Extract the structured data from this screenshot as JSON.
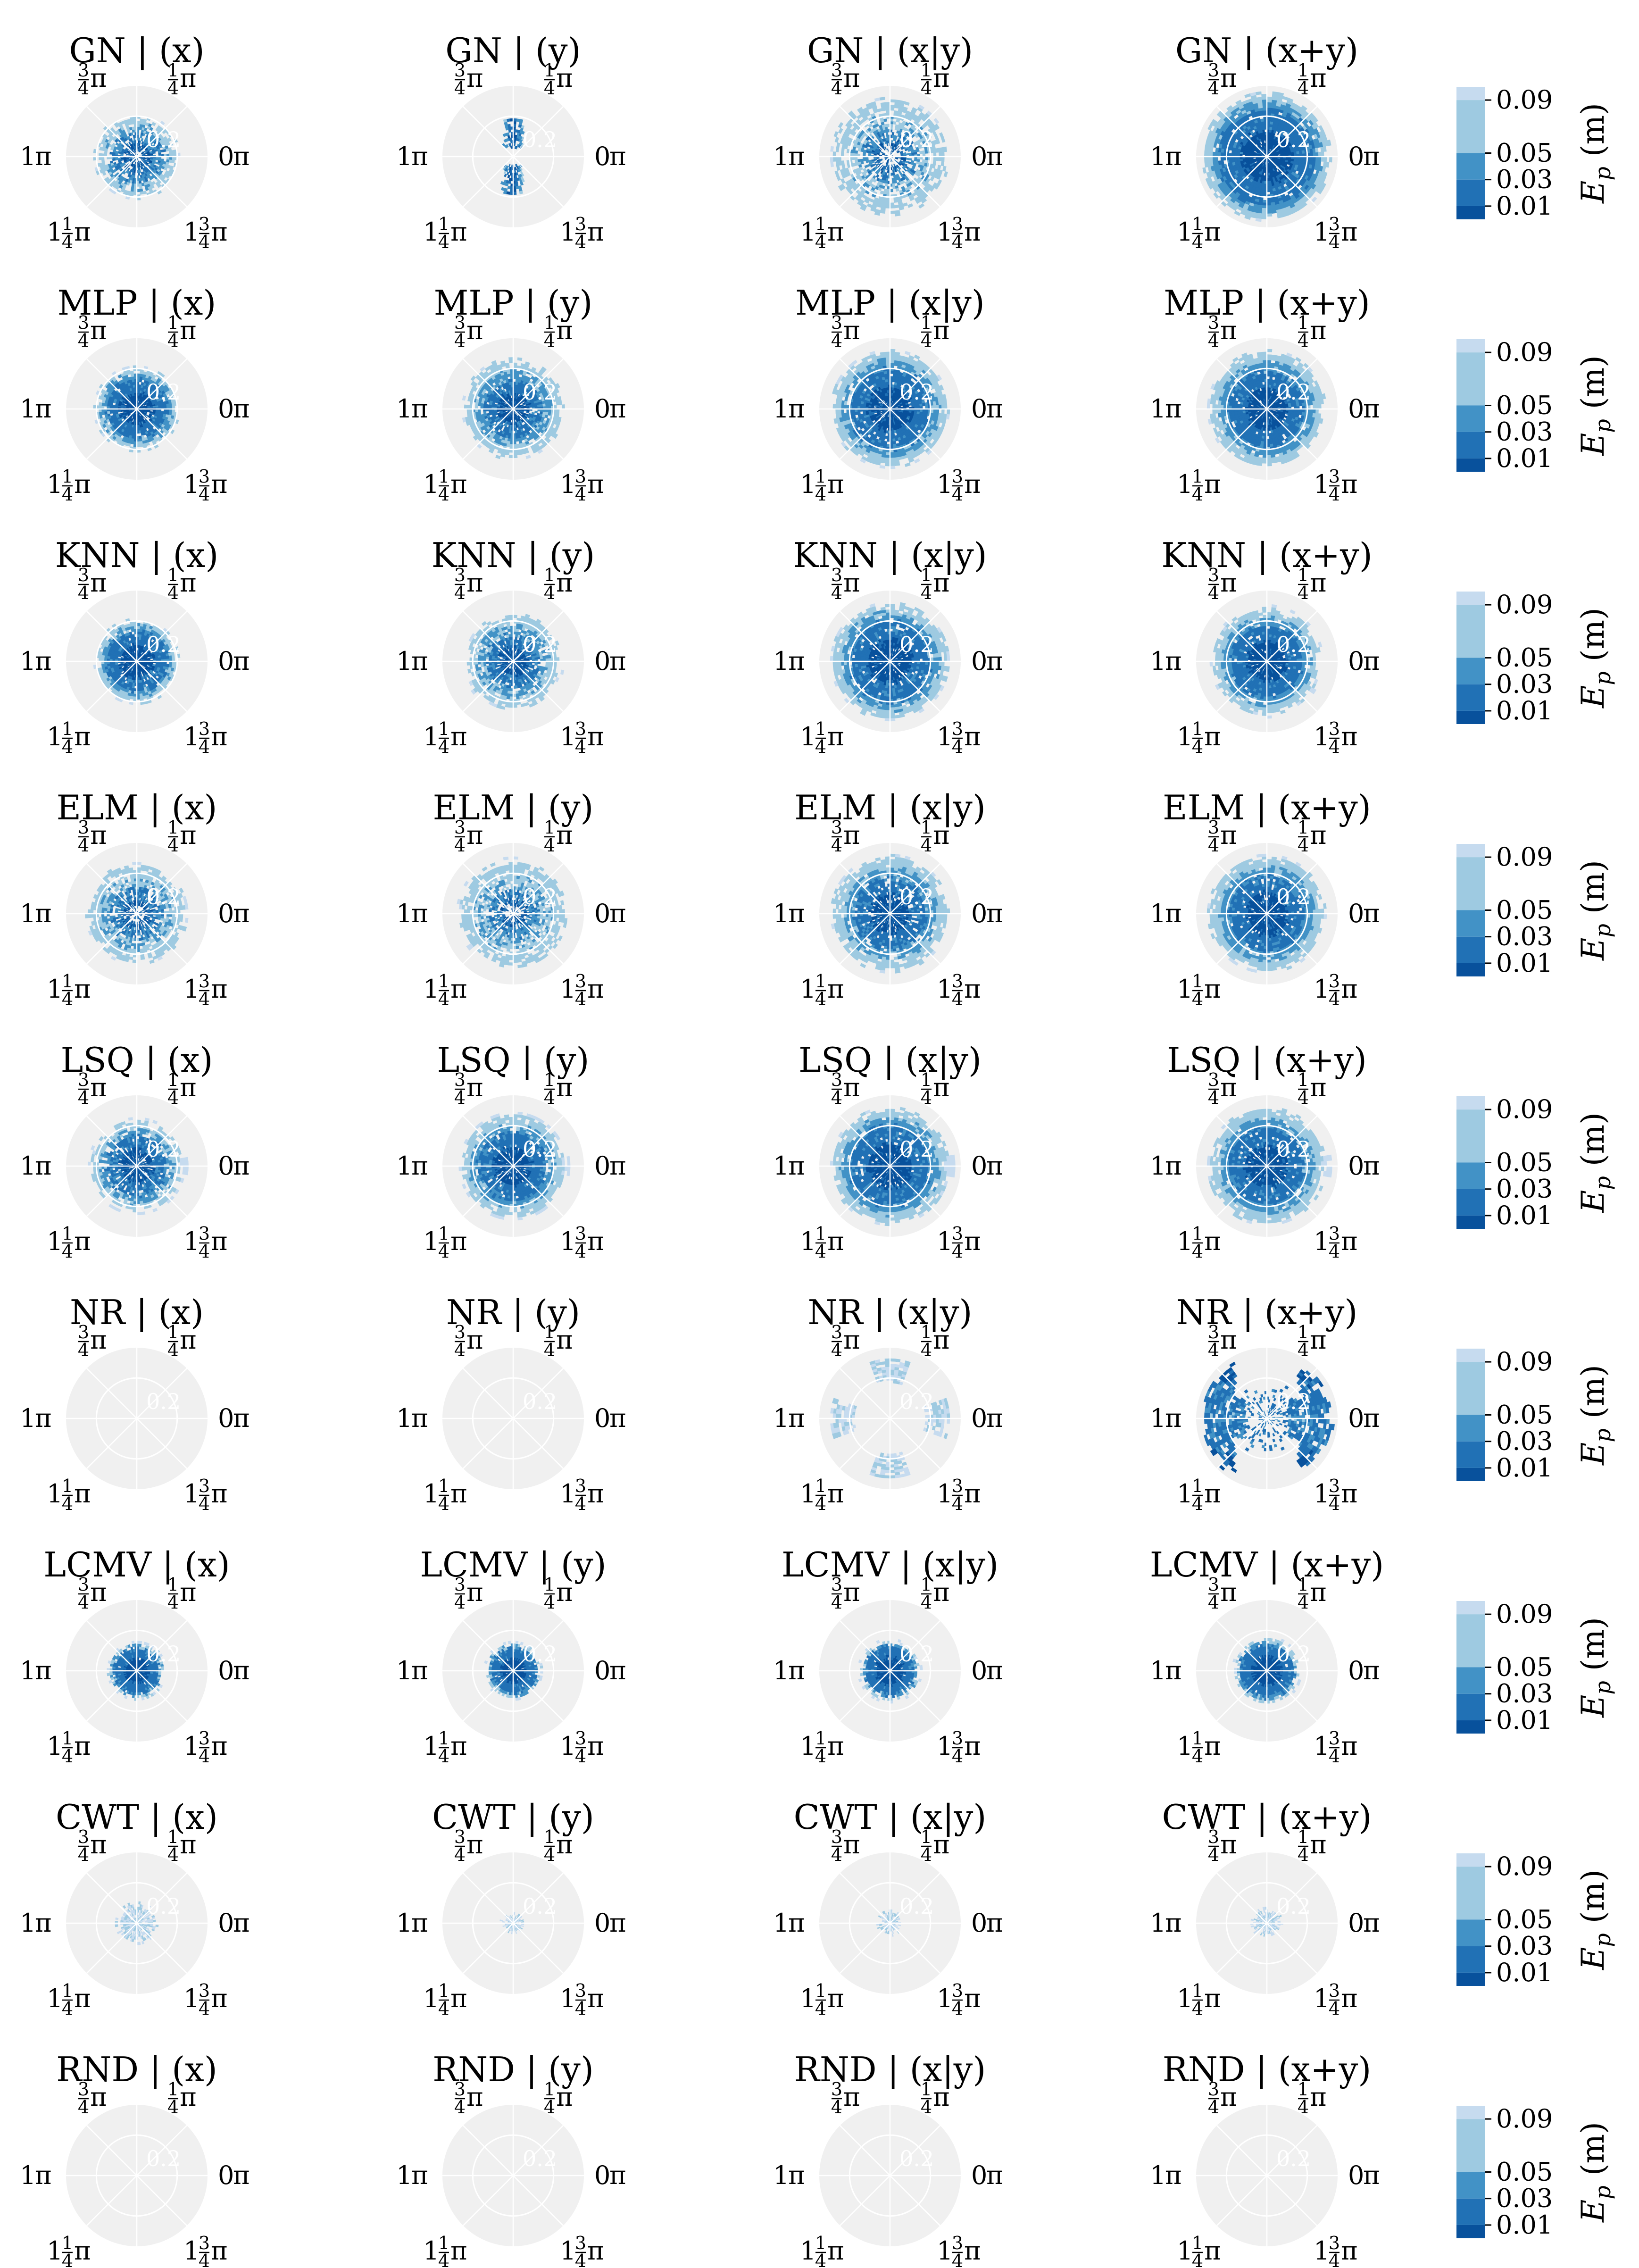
{
  "chart_data": {
    "type": "heatmap",
    "projection": "polar",
    "row_methods": [
      "GN",
      "MLP",
      "KNN",
      "ELM",
      "LSQ",
      "NR",
      "LCMV",
      "CWT",
      "RND"
    ],
    "column_inputs": [
      "(x)",
      "(y)",
      "(x|y)",
      "(x+y)"
    ],
    "panel_titles": [
      [
        "GN | (x)",
        "GN | (y)",
        "GN | (x|y)",
        "GN | (x+y)"
      ],
      [
        "MLP | (x)",
        "MLP | (y)",
        "MLP | (x|y)",
        "MLP | (x+y)"
      ],
      [
        "KNN | (x)",
        "KNN | (y)",
        "KNN | (x|y)",
        "KNN | (x+y)"
      ],
      [
        "ELM | (x)",
        "ELM | (y)",
        "ELM | (x|y)",
        "ELM | (x+y)"
      ],
      [
        "LSQ | (x)",
        "LSQ | (y)",
        "LSQ | (x|y)",
        "LSQ | (x+y)"
      ],
      [
        "NR | (x)",
        "NR | (y)",
        "NR | (x|y)",
        "NR | (x+y)"
      ],
      [
        "LCMV | (x)",
        "LCMV | (y)",
        "LCMV | (x|y)",
        "LCMV | (x+y)"
      ],
      [
        "CWT | (x)",
        "CWT | (y)",
        "CWT | (x|y)",
        "CWT | (x+y)"
      ],
      [
        "RND | (x)",
        "RND | (y)",
        "RND | (x|y)",
        "RND | (x+y)"
      ]
    ],
    "angle_ticks": [
      {
        "whole": "",
        "num": "3",
        "den": "4",
        "suffix": "π"
      },
      {
        "whole": "",
        "num": "1",
        "den": "4",
        "suffix": "π"
      },
      {
        "whole": "1",
        "num": "",
        "den": "",
        "suffix": "π"
      },
      {
        "whole": "0",
        "num": "",
        "den": "",
        "suffix": "π"
      },
      {
        "whole": "1",
        "num": "1",
        "den": "4",
        "suffix": "π"
      },
      {
        "whole": "1",
        "num": "3",
        "den": "4",
        "suffix": "π"
      }
    ],
    "radial_tick_label": "0.2",
    "colorbar": {
      "label": "E_p (m)",
      "label_main": "E",
      "label_sub": "p",
      "label_unit": " (m)",
      "ticks": [
        "0.09",
        "0.05",
        "0.03",
        "0.01"
      ],
      "levels": [
        0.01,
        0.03,
        0.05,
        0.09
      ]
    },
    "level_colors": [
      "#08519c",
      "#2171b5",
      "#4292c6",
      "#9ecae1",
      "#c6dbef"
    ],
    "background_color": "#f0f0f0",
    "panels": [
      [
        {
          "shape": "circle",
          "outer": 0.2,
          "core": 0.13,
          "density": 0.45,
          "hole": 0.03
        },
        {
          "shape": "bar_v",
          "outer": 0.17,
          "core": 0.08,
          "density": 0.3
        },
        {
          "shape": "circle",
          "outer": 0.28,
          "core": 0.14,
          "density": 0.3,
          "hole": 0.05
        },
        {
          "shape": "circle",
          "outer": 0.31,
          "core": 0.24,
          "density": 0.9
        }
      ],
      [
        {
          "shape": "circle",
          "outer": 0.2,
          "core": 0.15,
          "density": 0.85
        },
        {
          "shape": "circle",
          "outer": 0.24,
          "core": 0.14,
          "density": 0.75
        },
        {
          "shape": "circle",
          "outer": 0.28,
          "core": 0.2,
          "density": 0.85
        },
        {
          "shape": "circle",
          "outer": 0.28,
          "core": 0.19,
          "density": 0.9
        }
      ],
      [
        {
          "shape": "circle",
          "outer": 0.2,
          "core": 0.15,
          "density": 0.85
        },
        {
          "shape": "circle",
          "outer": 0.23,
          "core": 0.13,
          "density": 0.7
        },
        {
          "shape": "circle",
          "outer": 0.28,
          "core": 0.2,
          "density": 0.85
        },
        {
          "shape": "circle",
          "outer": 0.26,
          "core": 0.18,
          "density": 0.9
        }
      ],
      [
        {
          "shape": "circle",
          "outer": 0.24,
          "core": 0.13,
          "density": 0.45,
          "hole": 0.04
        },
        {
          "shape": "circle",
          "outer": 0.26,
          "core": 0.12,
          "density": 0.4,
          "hole": 0.04
        },
        {
          "shape": "circle",
          "outer": 0.28,
          "core": 0.18,
          "density": 0.75
        },
        {
          "shape": "circle",
          "outer": 0.28,
          "core": 0.19,
          "density": 0.85
        }
      ],
      [
        {
          "shape": "wedge",
          "outer": 0.22,
          "core": 0.15,
          "density": 0.7
        },
        {
          "shape": "wedge",
          "outer": 0.25,
          "core": 0.17,
          "density": 0.8
        },
        {
          "shape": "wedge",
          "outer": 0.28,
          "core": 0.2,
          "density": 0.85
        },
        {
          "shape": "wedge",
          "outer": 0.28,
          "core": 0.19,
          "density": 0.85
        }
      ],
      [
        {
          "shape": "empty"
        },
        {
          "shape": "empty"
        },
        {
          "shape": "clusters4",
          "outer": 0.26,
          "core": 0.0,
          "density": 0.25
        },
        {
          "shape": "ring",
          "outer": 0.31,
          "core": 0.2,
          "density": 0.7
        }
      ],
      [
        {
          "shape": "circle",
          "outer": 0.13,
          "core": 0.11,
          "density": 0.95
        },
        {
          "shape": "circle",
          "outer": 0.13,
          "core": 0.11,
          "density": 0.95
        },
        {
          "shape": "circle",
          "outer": 0.14,
          "core": 0.12,
          "density": 0.95
        },
        {
          "shape": "circle",
          "outer": 0.15,
          "core": 0.13,
          "density": 0.95
        }
      ],
      [
        {
          "shape": "speck",
          "outer": 0.09,
          "core": 0.0,
          "density": 0.4
        },
        {
          "shape": "speck",
          "outer": 0.04,
          "core": 0.0,
          "density": 0.4
        },
        {
          "shape": "speck",
          "outer": 0.05,
          "core": 0.0,
          "density": 0.3
        },
        {
          "shape": "speck",
          "outer": 0.06,
          "core": 0.0,
          "density": 0.4
        }
      ],
      [
        {
          "shape": "empty"
        },
        {
          "shape": "empty"
        },
        {
          "shape": "empty"
        },
        {
          "shape": "empty"
        }
      ]
    ]
  }
}
